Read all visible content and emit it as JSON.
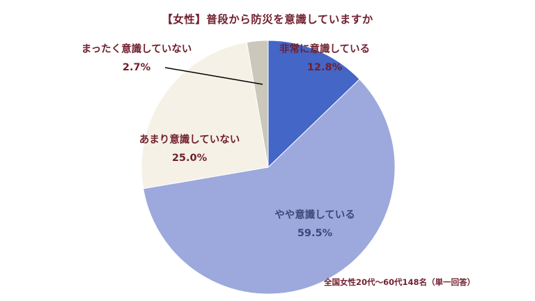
{
  "chart_data": {
    "type": "pie",
    "title": "【女性】普段から防災を意識していますか",
    "source_note": "全国女性20代〜60代148名（単一回答）",
    "start_angle_deg": 0,
    "direction": "clockwise",
    "background_color": "#ffffff",
    "title_color": "#701f2d",
    "leader_line_color": "#000000",
    "legend_position": "none",
    "slices": [
      {
        "label": "非常に意識している",
        "value": 12.8,
        "pct_label": "12.8%",
        "color": "#4466c7",
        "label_color": "#701f2d"
      },
      {
        "label": "やや意識している",
        "value": 59.5,
        "pct_label": "59.5%",
        "color": "#9da9dc",
        "label_color": "#3a4878"
      },
      {
        "label": "あまり意識していない",
        "value": 25.0,
        "pct_label": "25.0%",
        "color": "#f5f1e6",
        "label_color": "#701f2d"
      },
      {
        "label": "まったく意識していない",
        "value": 2.7,
        "pct_label": "2.7%",
        "color": "#cbc8bb",
        "label_color": "#701f2d"
      }
    ]
  }
}
